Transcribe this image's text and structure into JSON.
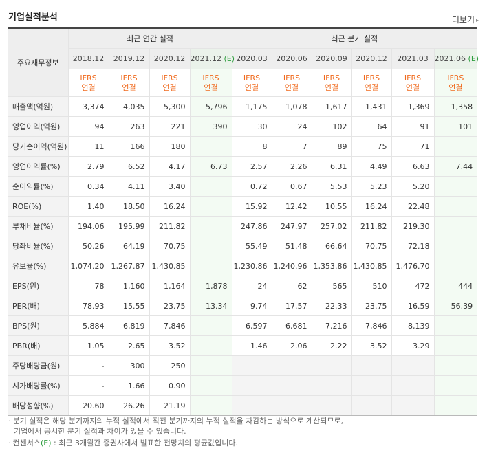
{
  "title": "기업실적분석",
  "more_label": "더보기",
  "table": {
    "label_header": "주요재무정보",
    "annual_header": "최근 연간 실적",
    "quarterly_header": "최근 분기 실적",
    "est_mark": "(E)",
    "ifrs_line1": "IFRS",
    "ifrs_line2": "연결",
    "annual_periods": [
      "2018.12",
      "2019.12",
      "2020.12",
      "2021.12"
    ],
    "quarterly_periods": [
      "2020.03",
      "2020.06",
      "2020.09",
      "2020.12",
      "2021.03",
      "2021.06"
    ],
    "rows": [
      {
        "label": "매출액(억원)",
        "values": [
          "3,374",
          "4,035",
          "5,300",
          "5,796",
          "1,175",
          "1,078",
          "1,617",
          "1,431",
          "1,369",
          "1,358"
        ]
      },
      {
        "label": "영업이익(억원)",
        "values": [
          "94",
          "263",
          "221",
          "390",
          "30",
          "24",
          "102",
          "64",
          "91",
          "101"
        ]
      },
      {
        "label": "당기순이익(억원)",
        "values": [
          "11",
          "166",
          "180",
          "",
          "8",
          "7",
          "89",
          "75",
          "71",
          ""
        ]
      },
      {
        "label": "영업이익률(%)",
        "values": [
          "2.79",
          "6.52",
          "4.17",
          "6.73",
          "2.57",
          "2.26",
          "6.31",
          "4.49",
          "6.63",
          "7.44"
        ]
      },
      {
        "label": "순이익률(%)",
        "values": [
          "0.34",
          "4.11",
          "3.40",
          "",
          "0.72",
          "0.67",
          "5.53",
          "5.23",
          "5.20",
          ""
        ]
      },
      {
        "label": "ROE(%)",
        "values": [
          "1.40",
          "18.50",
          "16.24",
          "",
          "15.92",
          "12.42",
          "10.55",
          "16.24",
          "22.48",
          ""
        ]
      },
      {
        "label": "부채비율(%)",
        "values": [
          "194.06",
          "195.99",
          "211.82",
          "",
          "247.86",
          "247.97",
          "257.02",
          "211.82",
          "219.30",
          ""
        ]
      },
      {
        "label": "당좌비율(%)",
        "values": [
          "50.26",
          "64.19",
          "70.75",
          "",
          "55.49",
          "51.48",
          "66.64",
          "70.75",
          "72.18",
          ""
        ]
      },
      {
        "label": "유보율(%)",
        "values": [
          "1,074.20",
          "1,267.87",
          "1,430.85",
          "",
          "1,230.86",
          "1,240.96",
          "1,353.86",
          "1,430.85",
          "1,476.70",
          ""
        ]
      },
      {
        "label": "EPS(원)",
        "values": [
          "78",
          "1,160",
          "1,164",
          "1,878",
          "24",
          "62",
          "565",
          "510",
          "472",
          "444"
        ]
      },
      {
        "label": "PER(배)",
        "values": [
          "78.93",
          "15.55",
          "23.75",
          "13.34",
          "9.74",
          "17.57",
          "22.33",
          "23.75",
          "16.59",
          "56.39"
        ]
      },
      {
        "label": "BPS(원)",
        "values": [
          "5,884",
          "6,819",
          "7,846",
          "",
          "6,597",
          "6,681",
          "7,216",
          "7,846",
          "8,139",
          ""
        ]
      },
      {
        "label": "PBR(배)",
        "values": [
          "1.05",
          "2.65",
          "3.52",
          "",
          "1.46",
          "2.06",
          "2.22",
          "3.52",
          "3.29",
          ""
        ]
      },
      {
        "label": "주당배당금(원)",
        "values": [
          "-",
          "300",
          "250",
          "",
          "",
          "",
          "",
          "",
          "",
          ""
        ]
      },
      {
        "label": "시가배당률(%)",
        "values": [
          "-",
          "1.66",
          "0.90",
          "",
          "",
          "",
          "",
          "",
          "",
          ""
        ]
      },
      {
        "label": "배당성향(%)",
        "values": [
          "20.60",
          "26.26",
          "21.19",
          "",
          "",
          "",
          "",
          "",
          "",
          ""
        ]
      }
    ]
  },
  "notes": {
    "line1a": "분기 실적은 해당 분기까지의 누적 실적에서 직전 분기까지의 누적 실적을 차감하는 방식으로 계산되므로,",
    "line1b": "기업에서 공시한 분기 실적과 차이가 있을 수 있습니다.",
    "line2_prefix": "컨센서스",
    "line2_mark": "(E)",
    "line2_rest": " : 최근 3개월간 증권사에서 발표한 전망치의 평균값입니다."
  },
  "colors": {
    "ifrs": "#f06b1f",
    "estimate_mark": "#2e9e3e",
    "estimate_bg": "#f3fbf3"
  }
}
